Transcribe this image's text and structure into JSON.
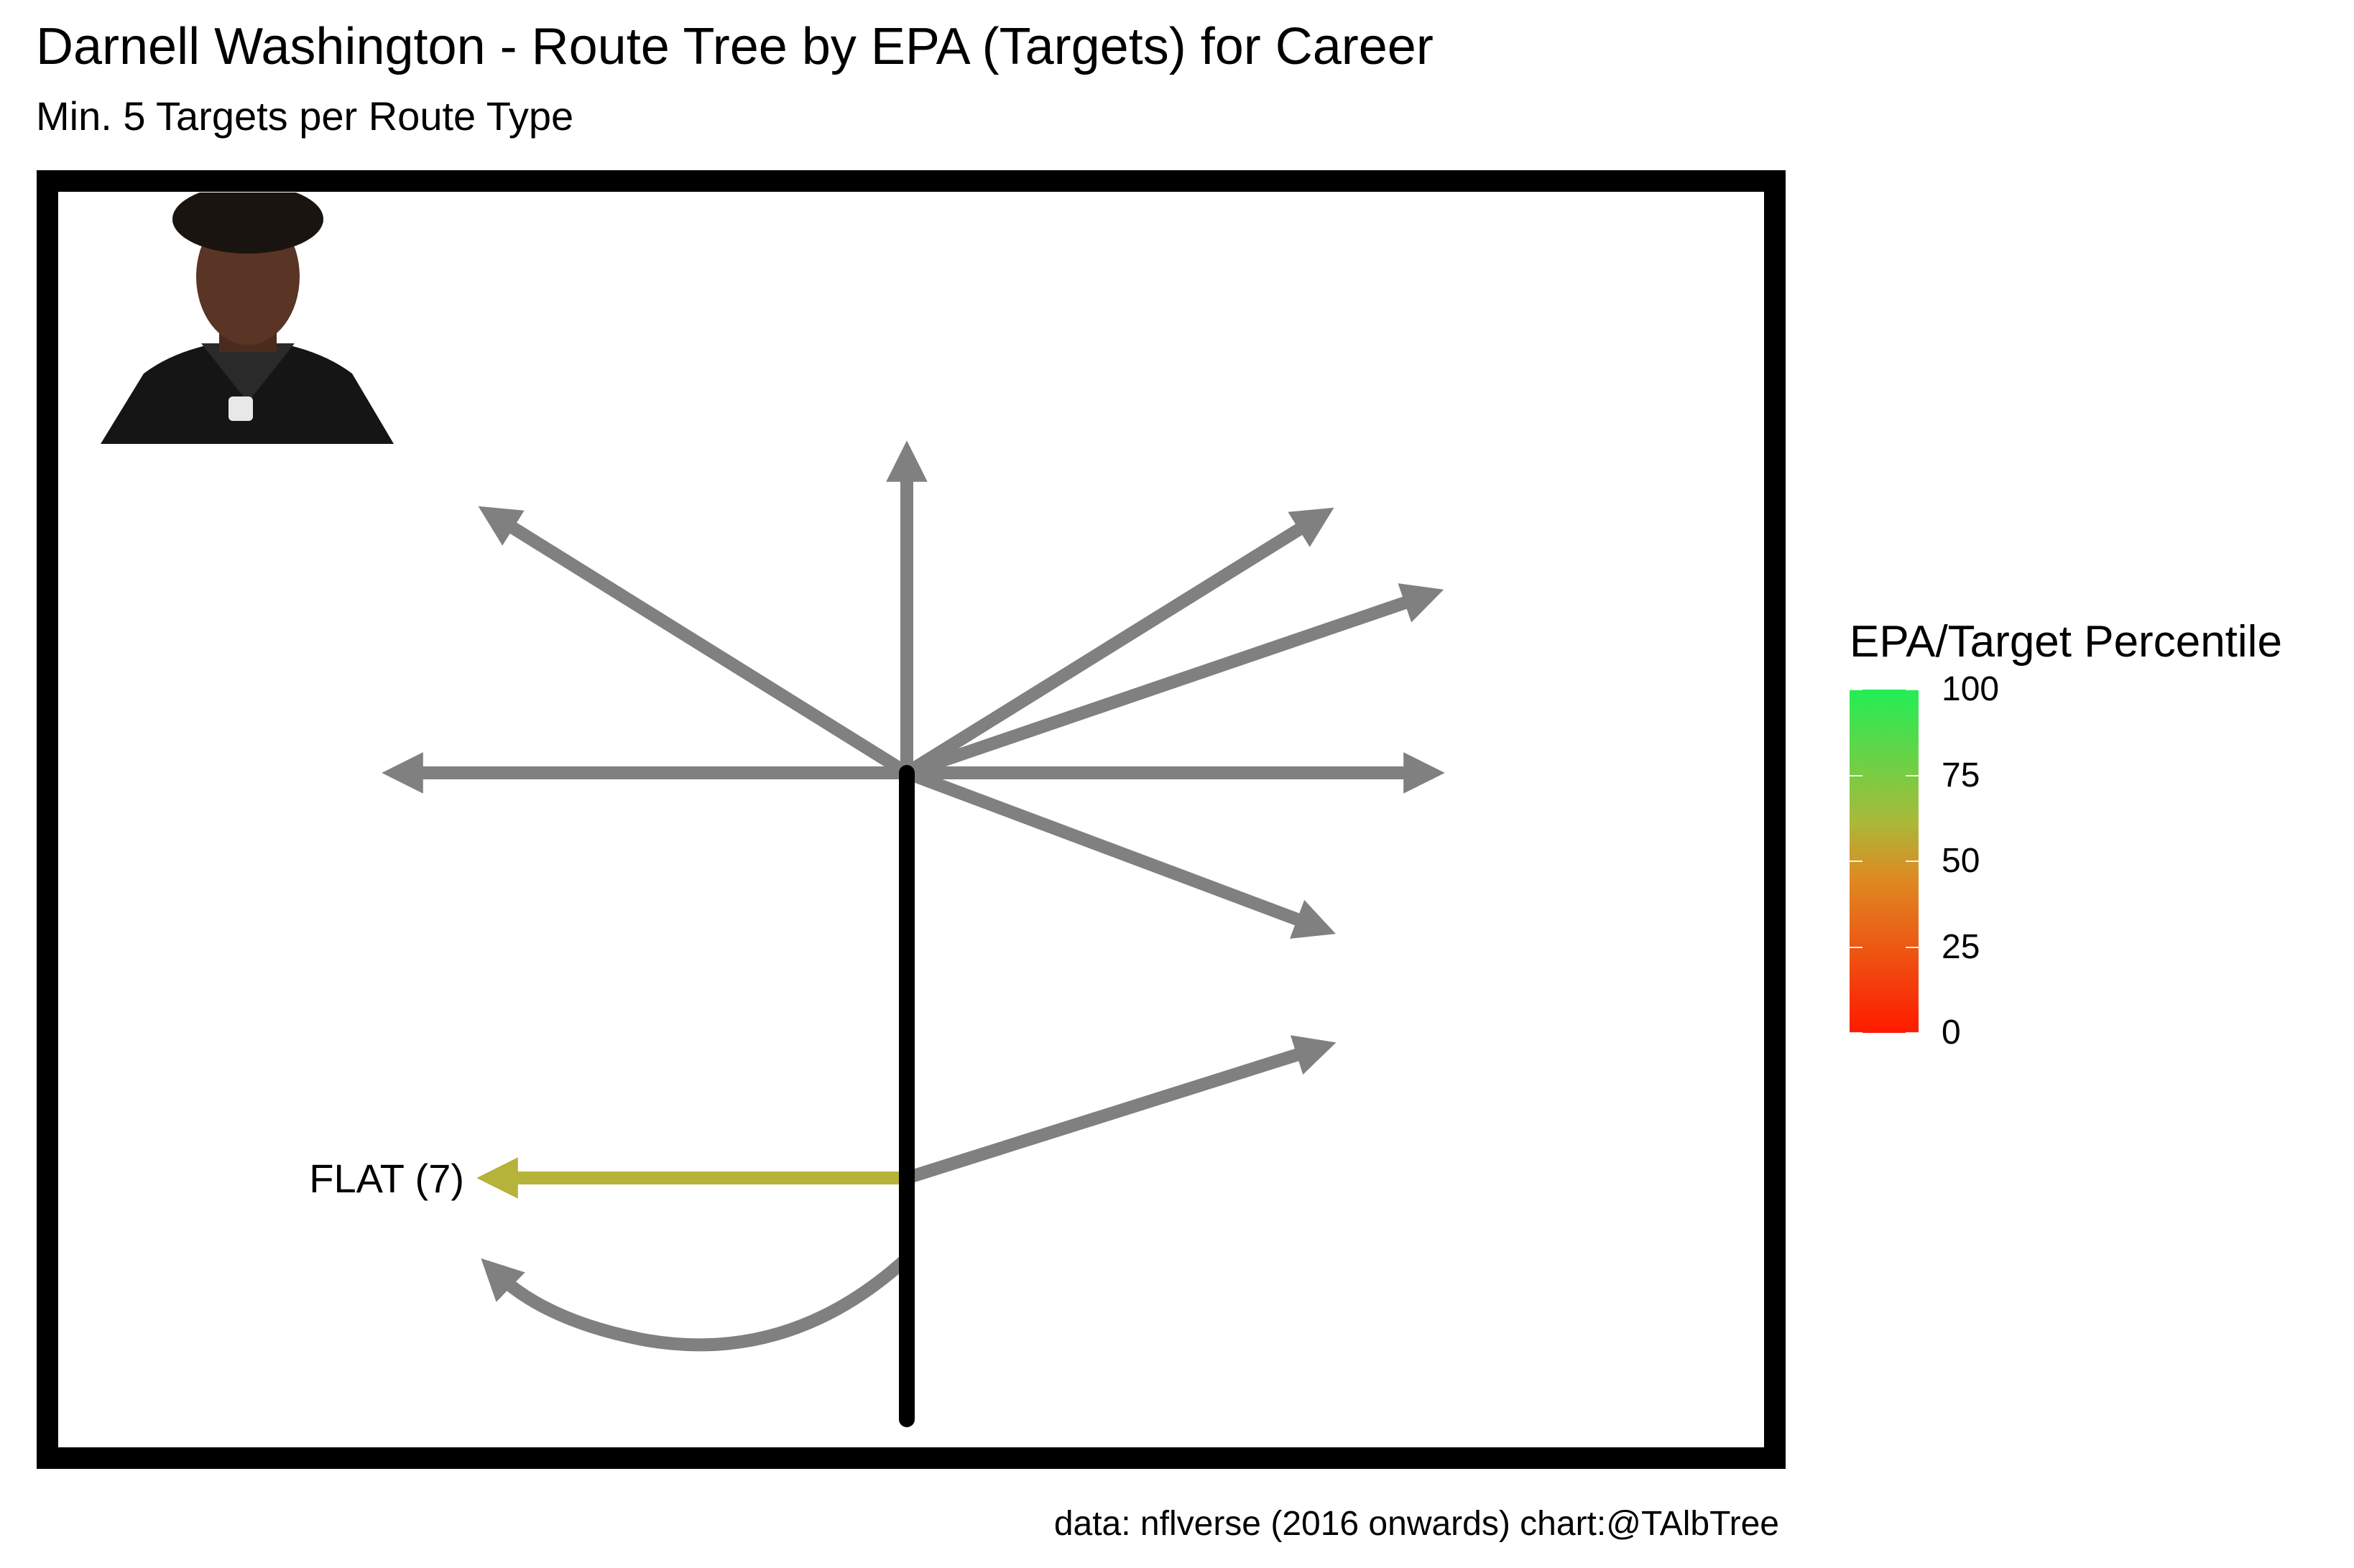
{
  "title": "Darnell Washington - Route Tree by EPA (Targets) for Career",
  "subtitle": "Min. 5 Targets per Route Type",
  "caption": "data: nflverse (2016 onwards)  chart:@TAlbTree",
  "player_photo": "player-headshot",
  "colors": {
    "untargeted_route": "#808080",
    "stem": "#000000",
    "flat_route": "#b6b33a",
    "gradient_low": "#ff1a00",
    "gradient_mid": "#de8a22",
    "gradient_high": "#22ee55"
  },
  "chart_data": {
    "type": "route-tree",
    "highlighted_routes": [
      {
        "label": "FLAT (7)",
        "route": "FLAT",
        "targets": 7,
        "percentile": 60
      }
    ],
    "unlabeled_routes": [
      "post",
      "go",
      "corner",
      "deep out",
      "in",
      "out",
      "wheel-style",
      "swing",
      "screen"
    ],
    "legend": {
      "title": "EPA/Target Percentile",
      "ticks": [
        "100",
        "75",
        "50",
        "25",
        "0"
      ],
      "range": [
        0,
        100
      ]
    }
  }
}
